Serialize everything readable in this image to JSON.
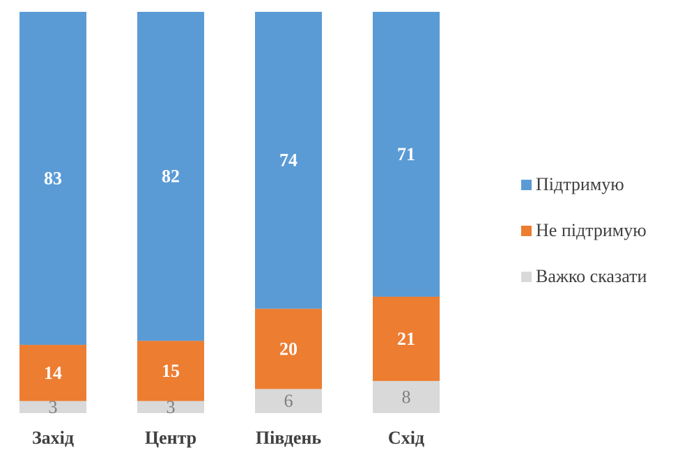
{
  "chart_data": {
    "type": "bar",
    "stacked": true,
    "percent_stacked": true,
    "categories": [
      "Захід",
      "Центр",
      "Південь",
      "Схід"
    ],
    "series": [
      {
        "name": "Важко сказати",
        "values": [
          3,
          3,
          6,
          8
        ],
        "color": "#d9d9d9"
      },
      {
        "name": "Не підтримую",
        "values": [
          14,
          15,
          20,
          21
        ],
        "color": "#ed7d31"
      },
      {
        "name": "Підтримую",
        "values": [
          83,
          82,
          74,
          71
        ],
        "color": "#5b9bd5"
      }
    ],
    "legend_position": "right",
    "legend_order": [
      "Підтримую",
      "Не підтримую",
      "Важко сказати"
    ],
    "grid": false,
    "ylim": [
      0,
      100
    ]
  }
}
